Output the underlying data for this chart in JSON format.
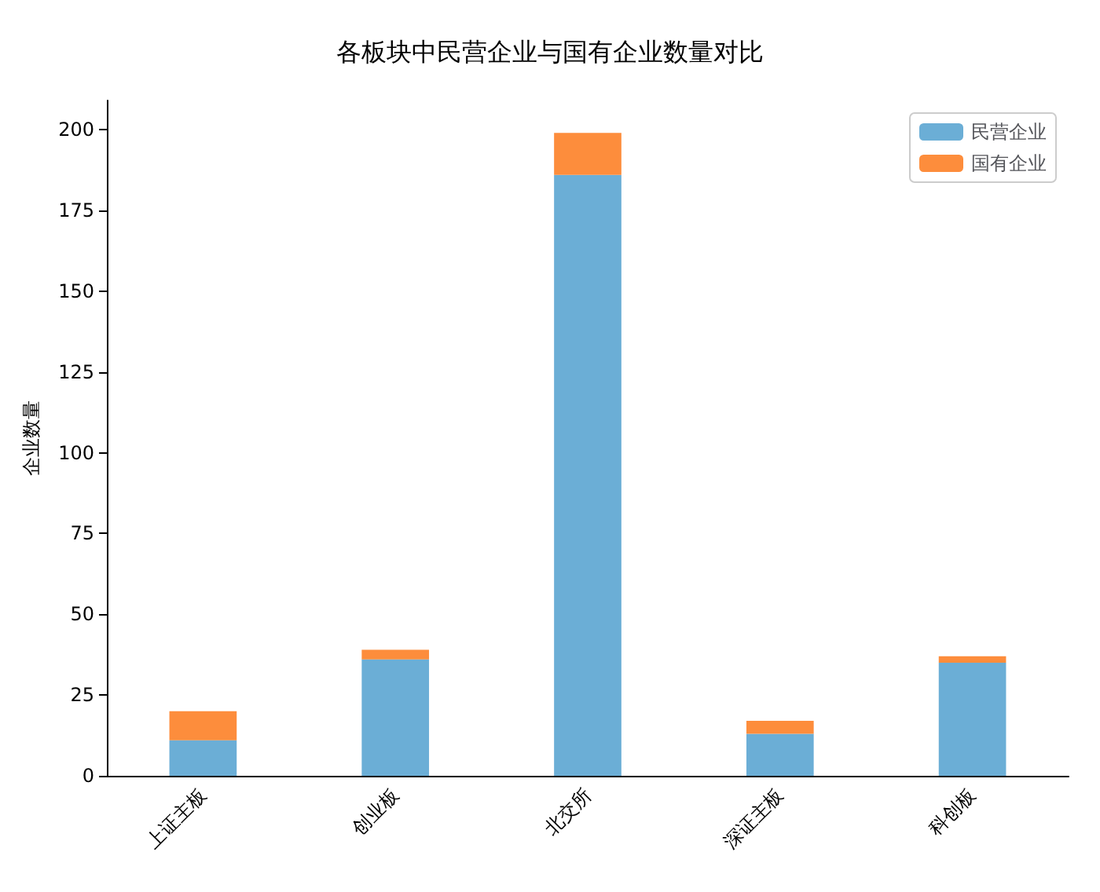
{
  "chart_data": {
    "type": "bar",
    "title": "各板块中民营企业与国有企业数量对比",
    "ylabel": "企业数量",
    "categories": [
      "上证主板",
      "创业板",
      "北交所",
      "深证主板",
      "科创板"
    ],
    "series": [
      {
        "name": "民营企业",
        "color": "#6baed6",
        "values": [
          11,
          36,
          186,
          13,
          35
        ]
      },
      {
        "name": "国有企业",
        "color": "#fd8d3c",
        "values": [
          9,
          3,
          13,
          4,
          2
        ]
      }
    ],
    "stacked": true,
    "ylim": [
      0,
      209
    ],
    "yticks": [
      0,
      25,
      50,
      75,
      100,
      125,
      150,
      175,
      200
    ],
    "grid": false,
    "legend": "top right"
  }
}
